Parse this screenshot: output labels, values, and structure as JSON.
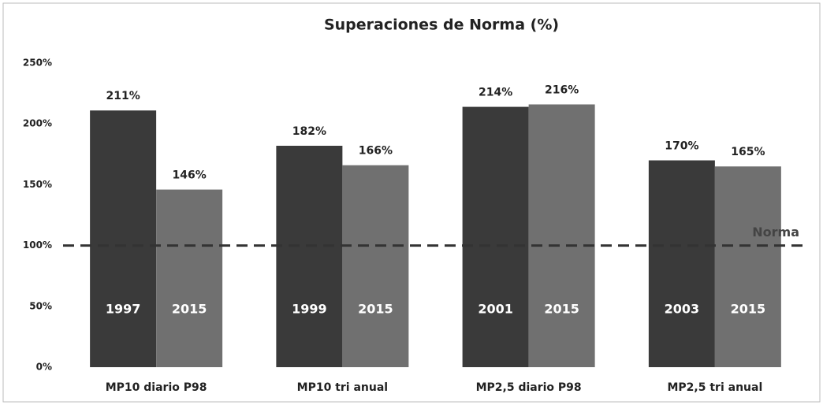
{
  "chart_data": {
    "type": "bar",
    "title": "Superaciones de Norma (%)",
    "categories": [
      "MP10 diario P98",
      "MP10  tri anual",
      "MP2,5 diario P98",
      "MP2,5  tri anual"
    ],
    "series": [
      {
        "color": "#3a3a3a",
        "values": [
          211,
          182,
          214,
          170
        ],
        "value_labels": [
          "211%",
          "182%",
          "214%",
          "170%"
        ],
        "labels": [
          "1997",
          "1999",
          "2001",
          "2003"
        ]
      },
      {
        "color": "#707070",
        "values": [
          146,
          166,
          216,
          165
        ],
        "value_labels": [
          "146%",
          "166%",
          "216%",
          "165%"
        ],
        "labels": [
          "2015",
          "2015",
          "2015",
          "2015"
        ]
      }
    ],
    "ylim": [
      0,
      250
    ],
    "yticks": [
      {
        "value": 0,
        "label": "0%"
      },
      {
        "value": 50,
        "label": "50%"
      },
      {
        "value": 100,
        "label": "100%"
      },
      {
        "value": 150,
        "label": "150%"
      },
      {
        "value": 200,
        "label": "200%"
      },
      {
        "value": 250,
        "label": "250%"
      }
    ],
    "reference_line": {
      "value": 100,
      "label": "Norma"
    },
    "grid": false
  }
}
